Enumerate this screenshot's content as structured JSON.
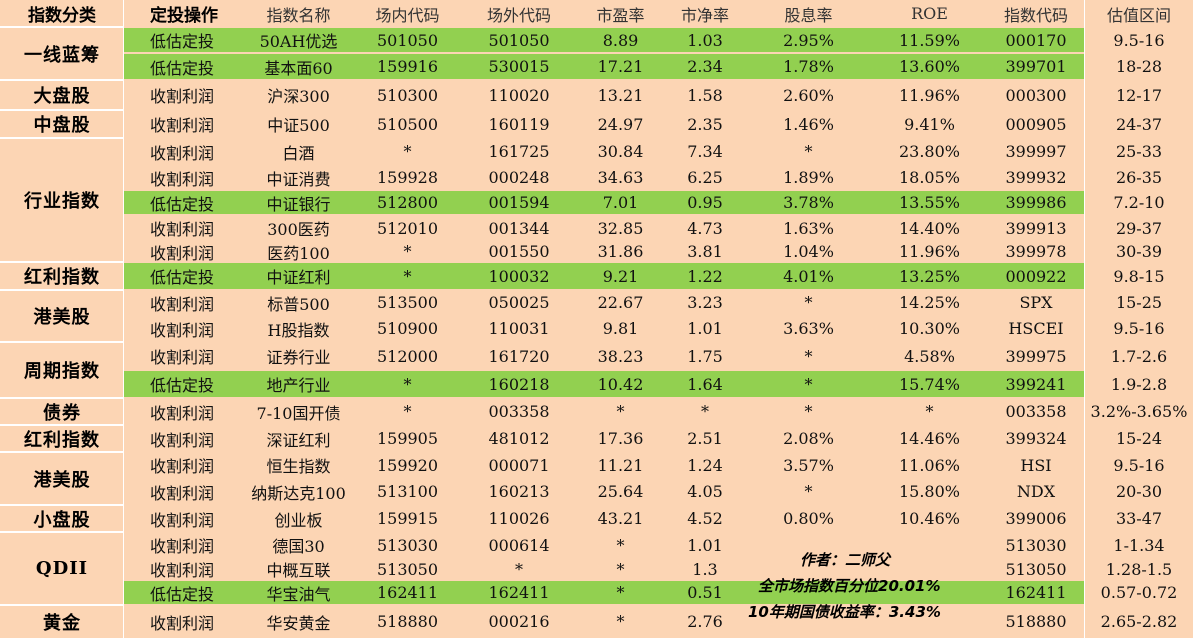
{
  "colors": {
    "background": "#fcd5b4",
    "highlight": "#92d050",
    "grid": "#ffffff"
  },
  "headers": [
    "指数分类",
    "定投操作",
    "指数名称",
    "场内代码",
    "场外代码",
    "市盈率",
    "市净率",
    "股息率",
    "ROE",
    "指数代码",
    "估值区间"
  ],
  "categories": [
    {
      "label": "一线蓝筹"
    },
    {
      "label": "大盘股"
    },
    {
      "label": "中盘股"
    },
    {
      "label": "行业指数"
    },
    {
      "label": "红利指数"
    },
    {
      "label": "港美股"
    },
    {
      "label": "周期指数"
    },
    {
      "label": "债券"
    },
    {
      "label": "红利指数"
    },
    {
      "label": "港美股"
    },
    {
      "label": "小盘股"
    },
    {
      "label": "QDII"
    },
    {
      "label": "黄金"
    }
  ],
  "rows": [
    {
      "op": "低估定投",
      "name": "50AH优选",
      "code_in": "501050",
      "code_out": "501050",
      "pe": "8.89",
      "pb": "1.03",
      "div": "2.95%",
      "roe": "11.59%",
      "index_code": "000170",
      "range": "9.5-16",
      "highlight": true
    },
    {
      "op": "低估定投",
      "name": "基本面60",
      "code_in": "159916",
      "code_out": "530015",
      "pe": "17.21",
      "pb": "2.34",
      "div": "1.78%",
      "roe": "13.60%",
      "index_code": "399701",
      "range": "18-28",
      "highlight": true
    },
    {
      "op": "收割利润",
      "name": "沪深300",
      "code_in": "510300",
      "code_out": "110020",
      "pe": "13.21",
      "pb": "1.58",
      "div": "2.60%",
      "roe": "11.96%",
      "index_code": "000300",
      "range": "12-17",
      "highlight": false
    },
    {
      "op": "收割利润",
      "name": "中证500",
      "code_in": "510500",
      "code_out": "160119",
      "pe": "24.97",
      "pb": "2.35",
      "div": "1.46%",
      "roe": "9.41%",
      "index_code": "000905",
      "range": "24-37",
      "highlight": false
    },
    {
      "op": "收割利润",
      "name": "白酒",
      "code_in": "*",
      "code_out": "161725",
      "pe": "30.84",
      "pb": "7.34",
      "div": "*",
      "roe": "23.80%",
      "index_code": "399997",
      "range": "25-33",
      "highlight": false
    },
    {
      "op": "收割利润",
      "name": "中证消费",
      "code_in": "159928",
      "code_out": "000248",
      "pe": "34.63",
      "pb": "6.25",
      "div": "1.89%",
      "roe": "18.05%",
      "index_code": "399932",
      "range": "26-35",
      "highlight": false
    },
    {
      "op": "低估定投",
      "name": "中证银行",
      "code_in": "512800",
      "code_out": "001594",
      "pe": "7.01",
      "pb": "0.95",
      "div": "3.78%",
      "roe": "13.55%",
      "index_code": "399986",
      "range": "7.2-10",
      "highlight": true
    },
    {
      "op": "收割利润",
      "name": "300医药",
      "code_in": "512010",
      "code_out": "001344",
      "pe": "32.85",
      "pb": "4.73",
      "div": "1.63%",
      "roe": "14.40%",
      "index_code": "399913",
      "range": "29-37",
      "highlight": false
    },
    {
      "op": "收割利润",
      "name": "医药100",
      "code_in": "*",
      "code_out": "001550",
      "pe": "31.86",
      "pb": "3.81",
      "div": "1.04%",
      "roe": "11.96%",
      "index_code": "399978",
      "range": "30-39",
      "highlight": false
    },
    {
      "op": "低估定投",
      "name": "中证红利",
      "code_in": "*",
      "code_out": "100032",
      "pe": "9.21",
      "pb": "1.22",
      "div": "4.01%",
      "roe": "13.25%",
      "index_code": "000922",
      "range": "9.8-15",
      "highlight": true
    },
    {
      "op": "收割利润",
      "name": "标普500",
      "code_in": "513500",
      "code_out": "050025",
      "pe": "22.67",
      "pb": "3.23",
      "div": "*",
      "roe": "14.25%",
      "index_code": "SPX",
      "range": "15-25",
      "highlight": false
    },
    {
      "op": "收割利润",
      "name": "H股指数",
      "code_in": "510900",
      "code_out": "110031",
      "pe": "9.81",
      "pb": "1.01",
      "div": "3.63%",
      "roe": "10.30%",
      "index_code": "HSCEI",
      "range": "9.5-16",
      "highlight": false
    },
    {
      "op": "收割利润",
      "name": "证券行业",
      "code_in": "512000",
      "code_out": "161720",
      "pe": "38.23",
      "pb": "1.75",
      "div": "*",
      "roe": "4.58%",
      "index_code": "399975",
      "range": "1.7-2.6",
      "highlight": false
    },
    {
      "op": "低估定投",
      "name": "地产行业",
      "code_in": "*",
      "code_out": "160218",
      "pe": "10.42",
      "pb": "1.64",
      "div": "*",
      "roe": "15.74%",
      "index_code": "399241",
      "range": "1.9-2.8",
      "highlight": true
    },
    {
      "op": "收割利润",
      "name": "7-10国开债",
      "code_in": "*",
      "code_out": "003358",
      "pe": "*",
      "pb": "*",
      "div": "*",
      "roe": "*",
      "index_code": "003358",
      "range": "3.2%-3.65%",
      "highlight": false
    },
    {
      "op": "收割利润",
      "name": "深证红利",
      "code_in": "159905",
      "code_out": "481012",
      "pe": "17.36",
      "pb": "2.51",
      "div": "2.08%",
      "roe": "14.46%",
      "index_code": "399324",
      "range": "15-24",
      "highlight": false
    },
    {
      "op": "收割利润",
      "name": "恒生指数",
      "code_in": "159920",
      "code_out": "000071",
      "pe": "11.21",
      "pb": "1.24",
      "div": "3.57%",
      "roe": "11.06%",
      "index_code": "HSI",
      "range": "9.5-16",
      "highlight": false
    },
    {
      "op": "收割利润",
      "name": "纳斯达克100",
      "code_in": "513100",
      "code_out": "160213",
      "pe": "25.64",
      "pb": "4.05",
      "div": "*",
      "roe": "15.80%",
      "index_code": "NDX",
      "range": "20-30",
      "highlight": false
    },
    {
      "op": "收割利润",
      "name": "创业板",
      "code_in": "159915",
      "code_out": "110026",
      "pe": "43.21",
      "pb": "4.52",
      "div": "0.80%",
      "roe": "10.46%",
      "index_code": "399006",
      "range": "33-47",
      "highlight": false
    },
    {
      "op": "收割利润",
      "name": "德国30",
      "code_in": "513030",
      "code_out": "000614",
      "pe": "*",
      "pb": "1.01",
      "div": "",
      "roe": "",
      "index_code": "513030",
      "range": "1-1.34",
      "highlight": false
    },
    {
      "op": "收割利润",
      "name": "中概互联",
      "code_in": "513050",
      "code_out": "*",
      "pe": "*",
      "pb": "1.3",
      "div": "",
      "roe": "",
      "index_code": "513050",
      "range": "1.28-1.5",
      "highlight": false
    },
    {
      "op": "低估定投",
      "name": "华宝油气",
      "code_in": "162411",
      "code_out": "162411",
      "pe": "*",
      "pb": "0.51",
      "div": "",
      "roe": "",
      "index_code": "162411",
      "range": "0.57-0.72",
      "highlight": true
    },
    {
      "op": "收割利润",
      "name": "华安黄金",
      "code_in": "518880",
      "code_out": "000216",
      "pe": "*",
      "pb": "2.76",
      "div": "",
      "roe": "",
      "index_code": "518880",
      "range": "2.65-2.82",
      "highlight": false
    }
  ],
  "notes": {
    "author": "作者：二师父",
    "market_pct": "全市场指数百分位20.01%",
    "bond_yield": "10年期国债收益率：3.43%"
  }
}
